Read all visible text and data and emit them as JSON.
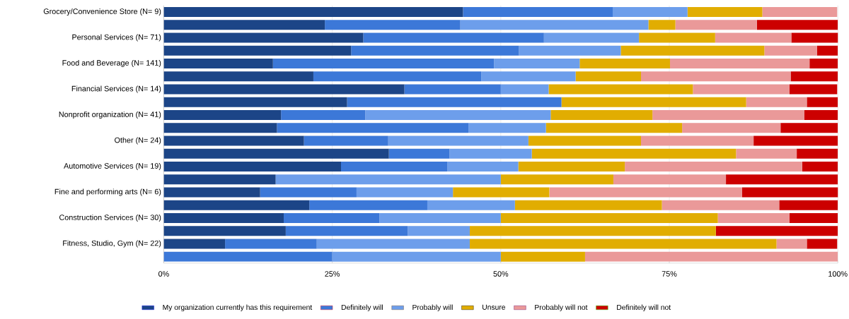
{
  "chart_data": {
    "type": "bar",
    "orientation": "horizontal",
    "stacked": true,
    "categories": [
      "Grocery/Convenience Store (N= 9)",
      null,
      "Personal Services (N= 71)",
      null,
      "Food and Beverage (N= 141)",
      null,
      "Financial Services (N= 14)",
      null,
      "Nonprofit organization (N= 41)",
      null,
      "Other (N= 24)",
      null,
      "Automotive Services (N= 19)",
      null,
      "Fine and performing arts (N= 6)",
      null,
      "Construction Services (N= 30)",
      null,
      "Fitness, Studio, Gym (N= 22)",
      null
    ],
    "series": [
      {
        "name": "My organization currently has this requirement",
        "color": "#1c4587",
        "values": [
          44.4,
          23.9,
          29.6,
          27.8,
          16.2,
          22.2,
          35.7,
          27.2,
          17.4,
          16.8,
          20.8,
          33.4,
          26.3,
          16.6,
          14.3,
          21.6,
          17.8,
          18.1,
          9.1,
          0
        ]
      },
      {
        "name": "Definitely will",
        "color": "#3c78d8",
        "values": [
          22.2,
          20.1,
          26.8,
          24.9,
          32.8,
          24.9,
          14.3,
          31.8,
          12.5,
          28.4,
          12.5,
          9.0,
          15.8,
          0,
          14.3,
          17.5,
          14.2,
          18.1,
          13.6,
          25.0
        ]
      },
      {
        "name": "Probably will",
        "color": "#6d9eeb",
        "values": [
          11.1,
          27.9,
          14.1,
          15.1,
          12.7,
          14.0,
          7.1,
          0,
          27.5,
          11.5,
          20.8,
          12.2,
          10.5,
          33.4,
          14.3,
          13.0,
          18.0,
          9.2,
          22.7,
          25.0
        ]
      },
      {
        "name": "Unsure",
        "color": "#e1ad01",
        "values": [
          11.1,
          4.0,
          11.3,
          21.3,
          13.4,
          9.7,
          21.4,
          27.4,
          15.1,
          20.2,
          16.7,
          30.3,
          15.8,
          16.7,
          14.3,
          21.8,
          32.2,
          36.5,
          45.5,
          12.5
        ]
      },
      {
        "name": "Probably will not",
        "color": "#ea9999",
        "values": [
          11.1,
          12.1,
          11.3,
          7.8,
          20.7,
          22.2,
          14.3,
          9.0,
          22.5,
          14.6,
          16.7,
          9.0,
          26.3,
          16.7,
          28.6,
          17.4,
          10.6,
          0,
          4.5,
          37.5
        ]
      },
      {
        "name": "Definitely will not",
        "color": "#cc0000",
        "values": [
          0,
          12.0,
          7.0,
          3.1,
          4.2,
          7.0,
          7.1,
          4.6,
          5.0,
          8.5,
          12.5,
          6.1,
          5.3,
          16.6,
          14.3,
          8.7,
          7.2,
          18.1,
          4.5,
          0
        ]
      }
    ],
    "xlim": [
      0,
      100
    ],
    "xticks": [
      {
        "value": 0,
        "label": "0%"
      },
      {
        "value": 25,
        "label": "25%"
      },
      {
        "value": 50,
        "label": "50%"
      },
      {
        "value": 75,
        "label": "75%"
      },
      {
        "value": 100,
        "label": "100%"
      }
    ],
    "grid": "x",
    "legend": "bottom"
  }
}
